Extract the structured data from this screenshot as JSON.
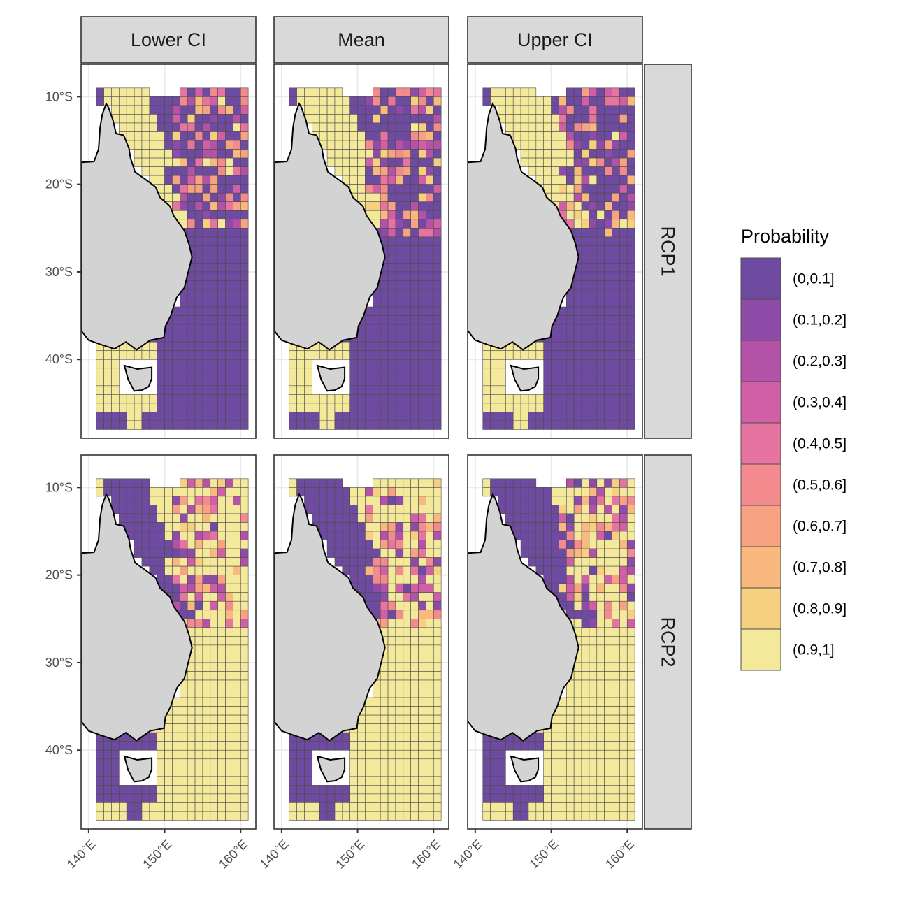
{
  "chart_data": {
    "type": "heatmap",
    "facet_columns": [
      "Lower CI",
      "Mean",
      "Upper CI"
    ],
    "facet_rows": [
      "RCP1",
      "RCP2"
    ],
    "x_ticks": [
      "140°E",
      "150°E",
      "160°E"
    ],
    "y_ticks": [
      "10°S",
      "20°S",
      "30°S",
      "40°S"
    ],
    "x_tick_values": [
      140,
      150,
      160
    ],
    "y_tick_values": [
      -10,
      -20,
      -30,
      -40
    ],
    "xlim": [
      139,
      162
    ],
    "ylim": [
      -49,
      -6.3
    ],
    "grid_lon_range": [
      141,
      160
    ],
    "grid_lat_range": [
      -47,
      -9
    ],
    "cell_size_deg": 1,
    "legend": {
      "title": "Probability",
      "position": "right",
      "bins": [
        "(0,0.1]",
        "(0.1,0.2]",
        "(0.2,0.3]",
        "(0.3,0.4]",
        "(0.4,0.5]",
        "(0.5,0.6]",
        "(0.6,0.7]",
        "(0.7,0.8]",
        "(0.8,0.9]",
        "(0.9,1]"
      ],
      "colors": [
        "#6E4BA0",
        "#8E4BA8",
        "#B352A7",
        "#D15FA5",
        "#E673A0",
        "#F38A8E",
        "#F7A282",
        "#F8B87E",
        "#F7CF80",
        "#F4E89A"
      ]
    },
    "land_color": "#D3D3D3",
    "coast_color": "#000000",
    "cell_border_color": "#4D4D4D",
    "strip_fill": "#D9D9D9",
    "grid": true
  }
}
